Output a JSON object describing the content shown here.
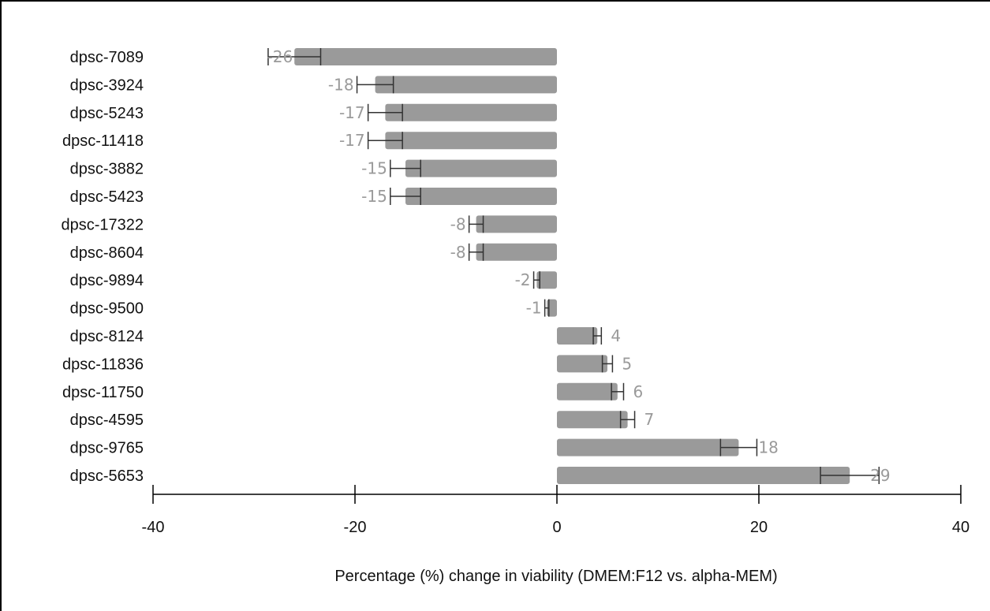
{
  "chart_data": {
    "type": "bar",
    "orientation": "horizontal",
    "title": "",
    "xlabel": "Percentage (%) change in viability (DMEM:F12 vs. alpha-MEM)",
    "ylabel": "",
    "xlim": [
      -40,
      40
    ],
    "xticks": [
      -40,
      -20,
      0,
      20,
      40
    ],
    "grid": false,
    "bar_color": "#9a9a9a",
    "label_color": "#9a9a9a",
    "categories": [
      "dpsc-7089",
      "dpsc-3924",
      "dpsc-5243",
      "dpsc-11418",
      "dpsc-3882",
      "dpsc-5423",
      "dpsc-17322",
      "dpsc-8604",
      "dpsc-9894",
      "dpsc-9500",
      "dpsc-8124",
      "dpsc-11836",
      "dpsc-11750",
      "dpsc-4595",
      "dpsc-9765",
      "dpsc-5653"
    ],
    "values": [
      -26,
      -18,
      -17,
      -17,
      -15,
      -15,
      -8,
      -8,
      -2,
      -1,
      4,
      5,
      6,
      7,
      18,
      29
    ],
    "value_labels": [
      "-26",
      "-18",
      "-17",
      "-17",
      "-15",
      "-15",
      "-8",
      "-8",
      "-2",
      "-1",
      "4",
      "5",
      "6",
      "7",
      "18",
      "29"
    ],
    "errors": [
      2.6,
      1.8,
      1.7,
      1.7,
      1.5,
      1.5,
      0.7,
      0.7,
      0.3,
      0.2,
      0.4,
      0.5,
      0.6,
      0.7,
      1.8,
      2.9
    ]
  }
}
